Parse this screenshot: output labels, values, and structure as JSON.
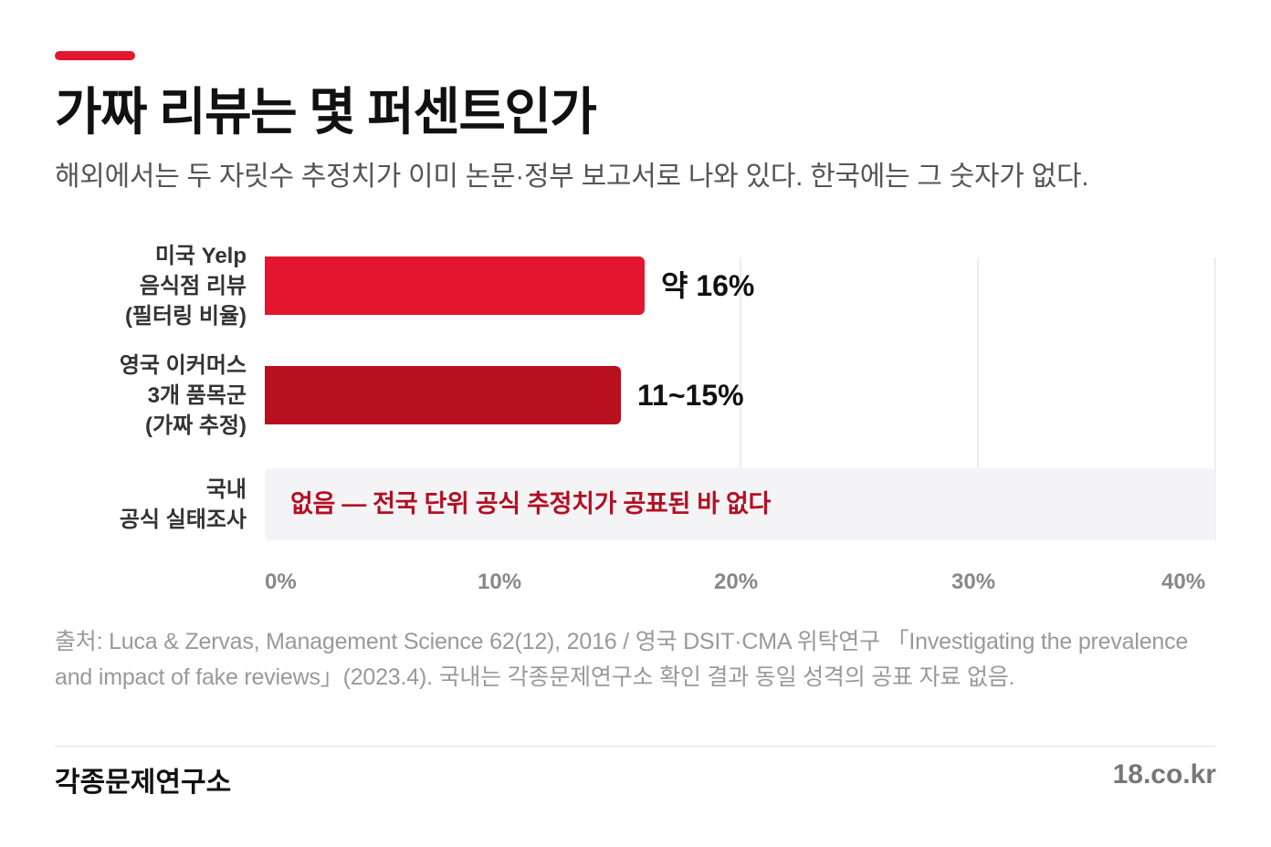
{
  "header": {
    "title": "가짜 리뷰는 몇 퍼센트인가",
    "subtitle": "해외에서는 두 자릿수 추정치가 이미 논문·정부 보고서로 나와 있다. 한국에는 그 숫자가 없다."
  },
  "colors": {
    "accent": "#e3152f",
    "bar_primary": "#e3152f",
    "bar_secondary": "#b8101f",
    "none_text": "#b30f22"
  },
  "chart_data": {
    "type": "bar",
    "orientation": "horizontal",
    "xlim": [
      0,
      40
    ],
    "x_ticks": [
      "0%",
      "10%",
      "20%",
      "30%",
      "40%"
    ],
    "grid": true,
    "categories": [
      [
        "미국 Yelp",
        "음식점 리뷰",
        "(필터링 비율)"
      ],
      [
        "영국 이커머스",
        "3개 품목군",
        "(가짜 추정)"
      ],
      [
        "국내",
        "공식 실태조사"
      ]
    ],
    "values": [
      16,
      15,
      null
    ],
    "value_labels": [
      "약 16%",
      "11~15%",
      ""
    ],
    "range": [
      null,
      [
        11,
        15
      ],
      null
    ],
    "no_data_label": "없음 — 전국 단위 공식 추정치가 공표된 바 없다"
  },
  "footer": {
    "source": "출처: Luca & Zervas, Management Science 62(12), 2016 / 영국 DSIT·CMA 위탁연구 「Investigating the prevalence and impact of fake reviews」(2023.4). 국내는 각종문제연구소 확인 결과 동일 성격의 공표 자료 없음.",
    "brand": "각종문제연구소",
    "site": "18.co.kr"
  }
}
